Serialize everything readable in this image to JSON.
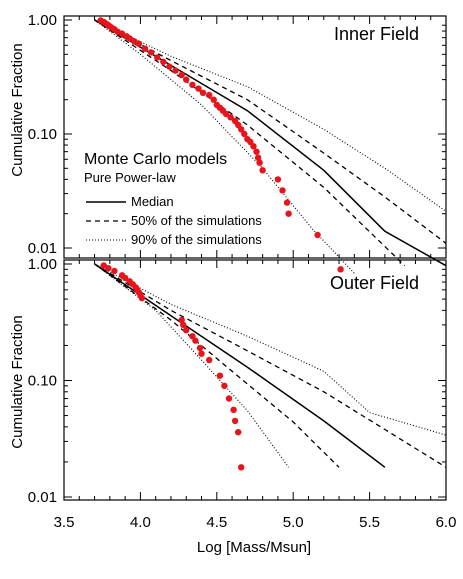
{
  "chart_data": {
    "type": "line",
    "xlabel": "Log [Mass/Msun]",
    "ylabel": "Cumulative Fraction",
    "xlim": [
      3.5,
      6.0
    ],
    "ylim": [
      0.01,
      1.0
    ],
    "yscale": "log",
    "x_ticks": [
      "3.5",
      "4.0",
      "4.5",
      "5.0",
      "5.5",
      "6.0"
    ],
    "y_ticks": [
      "0.01",
      "0.10",
      "1.00"
    ],
    "colors": {
      "data": "#e8141b",
      "lines": "#000000"
    },
    "legend": {
      "title": "Monte Carlo models",
      "subtitle": "Pure Power-law",
      "placement": "upper panel, lower-left",
      "items": [
        {
          "label": "Median",
          "style": "solid"
        },
        {
          "label": "50% of the simulations",
          "style": "dashed"
        },
        {
          "label": "90% of the simulations",
          "style": "dotted"
        }
      ]
    },
    "panels": [
      {
        "title": "Inner Field",
        "median": [
          [
            3.7,
            1.0
          ],
          [
            4.2,
            0.4
          ],
          [
            4.7,
            0.16
          ],
          [
            5.2,
            0.048
          ],
          [
            5.6,
            0.014
          ],
          [
            6.0,
            0.007
          ]
        ],
        "p50_low": [
          [
            3.7,
            1.0
          ],
          [
            4.2,
            0.36
          ],
          [
            4.7,
            0.12
          ],
          [
            5.2,
            0.034
          ],
          [
            5.73,
            0.007
          ]
        ],
        "p50_high": [
          [
            3.7,
            1.0
          ],
          [
            4.2,
            0.44
          ],
          [
            4.7,
            0.2
          ],
          [
            5.2,
            0.068
          ],
          [
            5.6,
            0.028
          ],
          [
            6.0,
            0.011
          ]
        ],
        "p90_low": [
          [
            3.7,
            1.0
          ],
          [
            4.0,
            0.5
          ],
          [
            4.4,
            0.18
          ],
          [
            4.8,
            0.05
          ],
          [
            5.12,
            0.015
          ],
          [
            5.4,
            0.006
          ]
        ],
        "p90_high": [
          [
            3.7,
            1.0
          ],
          [
            4.2,
            0.48
          ],
          [
            4.7,
            0.26
          ],
          [
            5.2,
            0.11
          ],
          [
            5.6,
            0.05
          ],
          [
            6.0,
            0.021
          ]
        ],
        "observed": [
          [
            3.74,
            0.99
          ],
          [
            3.76,
            0.96
          ],
          [
            3.77,
            0.94
          ],
          [
            3.78,
            0.92
          ],
          [
            3.79,
            0.9
          ],
          [
            3.8,
            0.88
          ],
          [
            3.81,
            0.86
          ],
          [
            3.83,
            0.83
          ],
          [
            3.85,
            0.79
          ],
          [
            3.88,
            0.76
          ],
          [
            3.91,
            0.72
          ],
          [
            3.93,
            0.69
          ],
          [
            3.96,
            0.65
          ],
          [
            3.99,
            0.62
          ],
          [
            4.03,
            0.56
          ],
          [
            4.07,
            0.52
          ],
          [
            4.11,
            0.47
          ],
          [
            4.15,
            0.43
          ],
          [
            4.19,
            0.39
          ],
          [
            4.23,
            0.36
          ],
          [
            4.27,
            0.33
          ],
          [
            4.3,
            0.3
          ],
          [
            4.34,
            0.27
          ],
          [
            4.38,
            0.25
          ],
          [
            4.41,
            0.23
          ],
          [
            4.45,
            0.22
          ],
          [
            4.48,
            0.2
          ],
          [
            4.5,
            0.18
          ],
          [
            4.52,
            0.17
          ],
          [
            4.54,
            0.16
          ],
          [
            4.56,
            0.15
          ],
          [
            4.59,
            0.14
          ],
          [
            4.62,
            0.13
          ],
          [
            4.64,
            0.12
          ],
          [
            4.66,
            0.11
          ],
          [
            4.68,
            0.1
          ],
          [
            4.7,
            0.09
          ],
          [
            4.72,
            0.085
          ],
          [
            4.74,
            0.078
          ],
          [
            4.76,
            0.07
          ],
          [
            4.77,
            0.062
          ],
          [
            4.78,
            0.056
          ],
          [
            4.8,
            0.048
          ],
          [
            4.9,
            0.04
          ],
          [
            4.93,
            0.032
          ],
          [
            4.96,
            0.025
          ],
          [
            4.97,
            0.02
          ],
          [
            5.16,
            0.013
          ],
          [
            5.31,
            0.0065
          ]
        ]
      },
      {
        "title": "Outer Field",
        "median": [
          [
            3.7,
            1.0
          ],
          [
            4.2,
            0.36
          ],
          [
            4.7,
            0.13
          ],
          [
            5.2,
            0.045
          ],
          [
            5.6,
            0.018
          ]
        ],
        "p50_low": [
          [
            3.7,
            1.0
          ],
          [
            4.2,
            0.33
          ],
          [
            4.6,
            0.12
          ],
          [
            5.0,
            0.044
          ],
          [
            5.3,
            0.018
          ]
        ],
        "p50_high": [
          [
            3.7,
            1.0
          ],
          [
            4.2,
            0.4
          ],
          [
            4.7,
            0.18
          ],
          [
            5.2,
            0.08
          ],
          [
            5.6,
            0.038
          ],
          [
            6.0,
            0.018
          ]
        ],
        "p90_low": [
          [
            3.7,
            1.0
          ],
          [
            4.1,
            0.4
          ],
          [
            4.4,
            0.15
          ],
          [
            4.7,
            0.055
          ],
          [
            4.97,
            0.018
          ]
        ],
        "p90_high": [
          [
            3.7,
            1.0
          ],
          [
            4.2,
            0.45
          ],
          [
            4.7,
            0.24
          ],
          [
            5.2,
            0.12
          ],
          [
            5.5,
            0.053
          ],
          [
            6.0,
            0.034
          ]
        ],
        "observed": [
          [
            3.76,
            0.97
          ],
          [
            3.79,
            0.92
          ],
          [
            3.83,
            0.87
          ],
          [
            3.88,
            0.8
          ],
          [
            3.9,
            0.76
          ],
          [
            3.93,
            0.71
          ],
          [
            3.95,
            0.67
          ],
          [
            3.97,
            0.63
          ],
          [
            3.98,
            0.6
          ],
          [
            3.99,
            0.57
          ],
          [
            4.0,
            0.54
          ],
          [
            4.01,
            0.51
          ],
          [
            4.27,
            0.33
          ],
          [
            4.28,
            0.3
          ],
          [
            4.3,
            0.27
          ],
          [
            4.34,
            0.24
          ],
          [
            4.36,
            0.22
          ],
          [
            4.39,
            0.19
          ],
          [
            4.4,
            0.17
          ],
          [
            4.45,
            0.15
          ],
          [
            4.52,
            0.11
          ],
          [
            4.55,
            0.09
          ],
          [
            4.58,
            0.07
          ],
          [
            4.61,
            0.056
          ],
          [
            4.62,
            0.045
          ],
          [
            4.64,
            0.036
          ],
          [
            4.66,
            0.018
          ]
        ]
      }
    ]
  }
}
